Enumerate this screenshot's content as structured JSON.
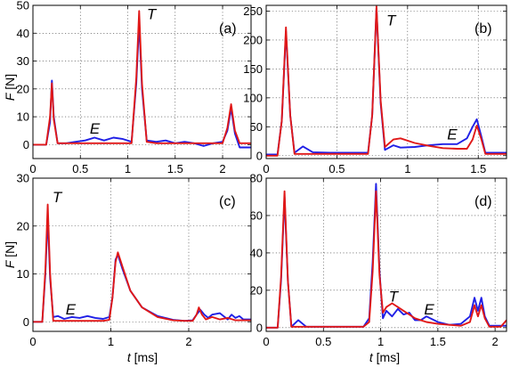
{
  "figure": {
    "ylabel": "F [N]",
    "xlabel": "t [ms]",
    "series_colors": {
      "blue": "#1f1fe6",
      "red": "#e01818"
    },
    "grid": "dotted"
  },
  "chart_data": [
    {
      "type": "line",
      "label": "(a)",
      "ylabel": "F [N]",
      "xlabel": "",
      "xlim": [
        0,
        2.3
      ],
      "ylim": [
        -5,
        50
      ],
      "xticks": [
        0,
        0.5,
        1,
        1.5,
        2
      ],
      "xtick_labels": [
        "0",
        "0.5",
        "1",
        "1.5",
        "2"
      ],
      "yticks": [
        0,
        10,
        20,
        30,
        40,
        50
      ],
      "ytick_labels": [
        "0",
        "10",
        "20",
        "30",
        "40",
        "50"
      ],
      "grid": true,
      "annotations": [
        {
          "text": "T",
          "x": 1.2,
          "y": 45
        },
        {
          "text": "E",
          "x": 0.6,
          "y": 4
        }
      ],
      "series": [
        {
          "color": "#1f1fe6",
          "x": [
            0,
            0.14,
            0.18,
            0.2,
            0.22,
            0.26,
            0.35,
            0.45,
            0.55,
            0.65,
            0.75,
            0.85,
            0.95,
            1.04,
            1.09,
            1.12,
            1.15,
            1.2,
            1.3,
            1.4,
            1.5,
            1.6,
            1.7,
            1.8,
            1.9,
            2.0,
            2.05,
            2.09,
            2.13,
            2.18,
            2.3
          ],
          "y": [
            0,
            0,
            8,
            23,
            10,
            0.5,
            0.5,
            1,
            1.5,
            2.5,
            1.5,
            2.5,
            2,
            1,
            22,
            44,
            20,
            1.5,
            1,
            1.5,
            0.5,
            1,
            0.5,
            -0.5,
            0.5,
            1,
            5,
            13,
            4,
            -1,
            -1
          ]
        },
        {
          "color": "#e01818",
          "x": [
            0,
            0.14,
            0.18,
            0.2,
            0.22,
            0.26,
            0.35,
            0.5,
            0.7,
            0.9,
            1.04,
            1.09,
            1.12,
            1.15,
            1.2,
            1.3,
            1.5,
            1.7,
            1.9,
            2.0,
            2.05,
            2.09,
            2.13,
            2.18,
            2.3
          ],
          "y": [
            0,
            0,
            10,
            22,
            9,
            0.5,
            0.5,
            0.5,
            0.5,
            0.5,
            0.5,
            24,
            48,
            22,
            1,
            0.5,
            0.5,
            0.5,
            0.5,
            0.5,
            6,
            14.5,
            5,
            0.5,
            0.5
          ]
        }
      ]
    },
    {
      "type": "line",
      "label": "(b)",
      "ylabel": "",
      "xlabel": "",
      "xlim": [
        0,
        1.7
      ],
      "ylim": [
        -5,
        260
      ],
      "xticks": [
        0,
        0.5,
        1,
        1.5
      ],
      "xtick_labels": [
        "0",
        "0.5",
        "1",
        "1.5"
      ],
      "yticks": [
        0,
        50,
        100,
        150,
        200,
        250
      ],
      "ytick_labels": [
        "0",
        "50",
        "100",
        "150",
        "200",
        "250"
      ],
      "grid": true,
      "annotations": [
        {
          "text": "T",
          "x": 0.85,
          "y": 225
        },
        {
          "text": "E",
          "x": 1.28,
          "y": 28
        }
      ],
      "series": [
        {
          "color": "#1f1fe6",
          "x": [
            0,
            0.08,
            0.11,
            0.14,
            0.17,
            0.2,
            0.26,
            0.33,
            0.45,
            0.55,
            0.65,
            0.72,
            0.75,
            0.78,
            0.81,
            0.84,
            0.9,
            0.95,
            1.05,
            1.15,
            1.25,
            1.35,
            1.42,
            1.46,
            1.49,
            1.52,
            1.55,
            1.6,
            1.7
          ],
          "y": [
            2,
            2,
            60,
            215,
            70,
            5,
            16,
            6,
            5,
            5,
            5,
            5,
            70,
            255,
            90,
            10,
            18,
            14,
            15,
            18,
            20,
            20,
            30,
            50,
            63,
            35,
            5,
            5,
            5
          ]
        },
        {
          "color": "#e01818",
          "x": [
            0,
            0.08,
            0.11,
            0.14,
            0.17,
            0.2,
            0.3,
            0.45,
            0.6,
            0.72,
            0.75,
            0.78,
            0.81,
            0.84,
            0.9,
            0.95,
            1.05,
            1.15,
            1.25,
            1.35,
            1.42,
            1.46,
            1.49,
            1.52,
            1.55,
            1.6,
            1.7
          ],
          "y": [
            0,
            0,
            60,
            222,
            70,
            3,
            3,
            3,
            3,
            3,
            70,
            258,
            95,
            15,
            28,
            30,
            22,
            17,
            13,
            12,
            12,
            28,
            52,
            30,
            3,
            3,
            3
          ]
        }
      ]
    },
    {
      "type": "line",
      "label": "(c)",
      "ylabel": "F [N]",
      "xlabel": "",
      "xlim": [
        0,
        2.8
      ],
      "ylim": [
        -2,
        30
      ],
      "xticks": [
        0,
        1,
        2
      ],
      "xtick_labels": [
        "0",
        "1",
        "2"
      ],
      "yticks": [
        0,
        10,
        20,
        30
      ],
      "ytick_labels": [
        "0",
        "10",
        "20",
        "30"
      ],
      "grid": true,
      "annotations": [
        {
          "text": "T",
          "x": 0.25,
          "y": 25
        },
        {
          "text": "E",
          "x": 0.42,
          "y": 1.5
        }
      ],
      "series": [
        {
          "color": "#1f1fe6",
          "x": [
            0,
            0.12,
            0.16,
            0.19,
            0.22,
            0.26,
            0.32,
            0.4,
            0.5,
            0.6,
            0.7,
            0.8,
            0.9,
            0.98,
            1.02,
            1.06,
            1.09,
            1.15,
            1.25,
            1.4,
            1.6,
            1.8,
            1.95,
            2.05,
            2.1,
            2.15,
            2.2,
            2.25,
            2.3,
            2.4,
            2.5,
            2.55,
            2.6,
            2.65,
            2.7,
            2.8
          ],
          "y": [
            0,
            0,
            10,
            22,
            9,
            1,
            1.2,
            0.6,
            1,
            0.8,
            1.2,
            0.8,
            0.6,
            1,
            5,
            13,
            14,
            11,
            6.5,
            3,
            1.2,
            0.4,
            0.2,
            0.3,
            1.5,
            2.5,
            1.5,
            0.8,
            1.5,
            1.8,
            0.5,
            1.5,
            0.8,
            1.2,
            0.5,
            0.5
          ]
        },
        {
          "color": "#e01818",
          "x": [
            0,
            0.12,
            0.16,
            0.19,
            0.22,
            0.26,
            0.35,
            0.5,
            0.7,
            0.9,
            0.98,
            1.02,
            1.06,
            1.09,
            1.15,
            1.25,
            1.4,
            1.6,
            1.8,
            1.95,
            2.05,
            2.1,
            2.13,
            2.17,
            2.22,
            2.3,
            2.4,
            2.5,
            2.6,
            2.8
          ],
          "y": [
            0,
            0,
            11,
            24.5,
            10,
            0.2,
            0.2,
            0.2,
            0.2,
            0.2,
            0.4,
            5,
            12.5,
            14.5,
            11.5,
            6.5,
            3,
            1,
            0.3,
            0.2,
            0.2,
            1.5,
            3,
            1.5,
            0.5,
            1,
            0.5,
            0.8,
            0.3,
            0.3
          ]
        }
      ]
    },
    {
      "type": "line",
      "label": "(d)",
      "ylabel": "",
      "xlabel": "",
      "xlim": [
        0,
        2.1
      ],
      "ylim": [
        -2,
        80
      ],
      "xticks": [
        0,
        0.5,
        1,
        1.5,
        2
      ],
      "xtick_labels": [
        "0",
        "0.5",
        "1",
        "1.5",
        "2"
      ],
      "yticks": [
        0,
        20,
        40,
        60,
        80
      ],
      "ytick_labels": [
        "0",
        "20",
        "40",
        "60",
        "80"
      ],
      "grid": true,
      "annotations": [
        {
          "text": "T",
          "x": 1.07,
          "y": 14
        },
        {
          "text": "E",
          "x": 1.38,
          "y": 7
        }
      ],
      "series": [
        {
          "color": "#1f1fe6",
          "x": [
            0,
            0.1,
            0.13,
            0.16,
            0.19,
            0.22,
            0.28,
            0.35,
            0.5,
            0.7,
            0.85,
            0.9,
            0.93,
            0.96,
            0.99,
            1.02,
            1.05,
            1.1,
            1.15,
            1.2,
            1.25,
            1.3,
            1.35,
            1.4,
            1.5,
            1.6,
            1.7,
            1.78,
            1.82,
            1.85,
            1.88,
            1.91,
            1.95,
            2.0,
            2.1
          ],
          "y": [
            0,
            0,
            25,
            70,
            25,
            0.5,
            4,
            0.5,
            0.5,
            0.5,
            0.5,
            5,
            35,
            77,
            30,
            5,
            9,
            6,
            10,
            7,
            8,
            4,
            4,
            6,
            3,
            1.5,
            2,
            6,
            16,
            9,
            16,
            6,
            1,
            1,
            1
          ]
        },
        {
          "color": "#e01818",
          "x": [
            0,
            0.1,
            0.13,
            0.16,
            0.19,
            0.22,
            0.3,
            0.5,
            0.7,
            0.85,
            0.9,
            0.93,
            0.96,
            0.99,
            1.02,
            1.05,
            1.1,
            1.15,
            1.2,
            1.25,
            1.3,
            1.4,
            1.5,
            1.6,
            1.7,
            1.78,
            1.82,
            1.85,
            1.88,
            1.91,
            1.95,
            2.05,
            2.1
          ],
          "y": [
            0,
            0,
            27,
            73,
            25,
            0.5,
            0.5,
            0.5,
            0.5,
            0.5,
            3,
            30,
            73,
            28,
            8,
            11,
            13,
            11,
            9,
            7,
            5,
            3,
            2,
            1.5,
            1,
            3,
            12,
            6,
            12,
            5,
            0.5,
            0.5,
            4
          ]
        }
      ]
    }
  ]
}
